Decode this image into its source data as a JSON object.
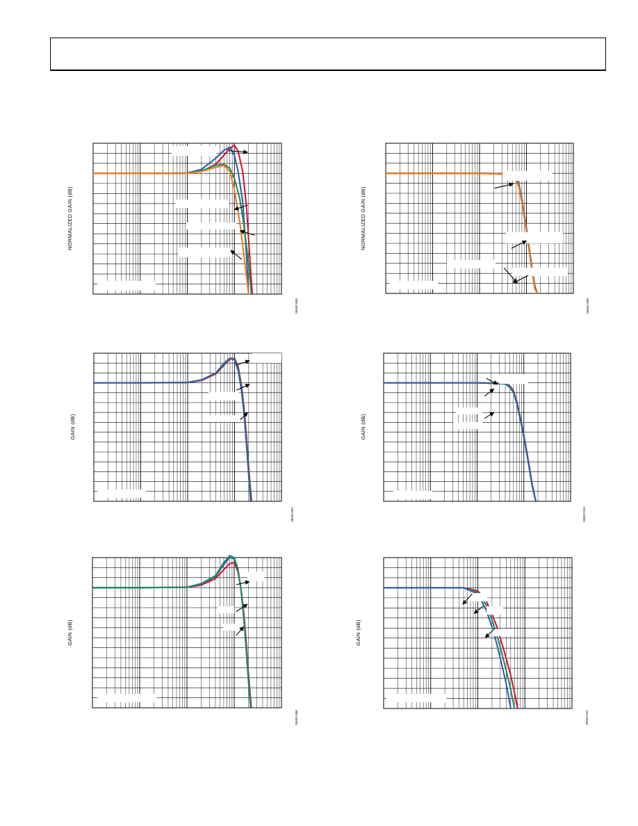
{
  "page": {
    "header_text": ""
  },
  "chart_data": [
    {
      "id": "c1",
      "type": "line",
      "xscale": "log",
      "xlim": [
        0.1,
        1000
      ],
      "ylim": [
        -12,
        3
      ],
      "ylabel": "NORMALIZED GAIN (dB)",
      "figure_code": "09452-006",
      "series": [
        {
          "color": "#d6152f",
          "x": [
            0.1,
            1,
            10,
            20,
            40,
            60,
            80,
            100,
            120,
            150,
            180,
            210,
            240
          ],
          "y": [
            0,
            0,
            0.02,
            0.2,
            0.9,
            1.8,
            2.5,
            2.8,
            2.2,
            0.2,
            -3.2,
            -8.0,
            -12
          ]
        },
        {
          "color": "#2e5fa8",
          "x": [
            0.1,
            1,
            10,
            20,
            40,
            60,
            80,
            100,
            120,
            150,
            180,
            200
          ],
          "y": [
            0,
            0,
            0.04,
            0.4,
            1.5,
            2.3,
            2.6,
            1.8,
            0.2,
            -2.8,
            -8.0,
            -12
          ]
        },
        {
          "color": "#1c8a62",
          "x": [
            0.1,
            1,
            10,
            20,
            40,
            60,
            80,
            100,
            130,
            160,
            200,
            230
          ],
          "y": [
            0,
            0,
            0.02,
            0.25,
            0.8,
            0.9,
            0.5,
            -0.5,
            -2.5,
            -5.2,
            -9.0,
            -12
          ]
        },
        {
          "color": "#ef7a1a",
          "x": [
            0.1,
            1,
            10,
            20,
            40,
            60,
            80,
            100,
            130,
            160,
            200
          ],
          "y": [
            0,
            0,
            0.02,
            0.2,
            0.6,
            0.8,
            0.2,
            -1.6,
            -4.8,
            -8.2,
            -12
          ]
        }
      ],
      "arrows": [
        [
          0.72,
          0.05,
          0.82,
          0.06
        ],
        [
          0.82,
          0.41,
          0.75,
          0.44
        ],
        [
          0.86,
          0.61,
          0.78,
          0.58
        ],
        [
          0.79,
          0.77,
          0.73,
          0.71
        ]
      ]
    },
    {
      "id": "c2",
      "type": "line",
      "xscale": "log",
      "xlim": [
        0.1,
        1000
      ],
      "ylim": [
        -12,
        3
      ],
      "ylabel": "NORMALIZED GAIN (dB)",
      "figure_code": "09452-009",
      "series": [
        {
          "color": "#d6152f",
          "x": [
            0.1,
            10,
            50,
            60,
            70,
            80,
            100,
            120,
            150,
            170
          ],
          "y": [
            0,
            0,
            -0.05,
            -0.3,
            -1.2,
            -2.6,
            -5.5,
            -8.2,
            -11.2,
            -12
          ]
        },
        {
          "color": "#1c8a62",
          "x": [
            0.1,
            10,
            50,
            60,
            70,
            80,
            100,
            120,
            150,
            170
          ],
          "y": [
            0,
            0,
            -0.08,
            -0.4,
            -1.3,
            -2.7,
            -5.6,
            -8.3,
            -11.3,
            -12
          ]
        },
        {
          "color": "#2e5fa8",
          "x": [
            0.1,
            10,
            50,
            60,
            70,
            80,
            100,
            120,
            150,
            170
          ],
          "y": [
            0,
            0,
            -0.1,
            -0.5,
            -1.4,
            -2.8,
            -5.7,
            -8.4,
            -11.4,
            -12
          ]
        },
        {
          "color": "#ef7a1a",
          "x": [
            0.1,
            10,
            50,
            60,
            70,
            80,
            100,
            120,
            150,
            170
          ],
          "y": [
            0,
            0,
            -0.12,
            -0.6,
            -1.5,
            -2.9,
            -5.8,
            -8.5,
            -11.5,
            -12
          ]
        }
      ],
      "arrows": [
        [
          0.58,
          0.3,
          0.68,
          0.27
        ],
        [
          0.67,
          0.7,
          0.75,
          0.65
        ],
        [
          0.63,
          0.83,
          0.7,
          0.93
        ],
        [
          0.76,
          0.88,
          0.68,
          0.93
        ]
      ]
    },
    {
      "id": "c3",
      "type": "line",
      "xscale": "log",
      "xlim": [
        0.1,
        1000
      ],
      "ylim": [
        -12,
        3
      ],
      "ylabel": "GAIN (dB)",
      "figure_code": "09452-007",
      "series": [
        {
          "color": "#d6152f",
          "x": [
            0.1,
            1,
            10,
            20,
            40,
            60,
            80,
            100,
            120,
            140,
            160,
            180,
            200,
            230
          ],
          "y": [
            0,
            0,
            0.03,
            0.25,
            0.9,
            1.8,
            2.4,
            2.5,
            1.6,
            -0.2,
            -2.6,
            -5.5,
            -8.6,
            -12
          ]
        },
        {
          "color": "#1c8a62",
          "x": [
            0.1,
            1,
            10,
            20,
            40,
            60,
            80,
            100,
            120,
            140,
            160,
            180,
            200,
            225
          ],
          "y": [
            0,
            0,
            0.03,
            0.3,
            1.0,
            1.9,
            2.5,
            2.4,
            1.4,
            -0.5,
            -3.0,
            -6.0,
            -9.1,
            -12
          ]
        },
        {
          "color": "#2e5fa8",
          "x": [
            0.1,
            1,
            10,
            20,
            40,
            60,
            80,
            100,
            120,
            140,
            160,
            180,
            200,
            220
          ],
          "y": [
            0,
            0,
            0.03,
            0.3,
            1.0,
            2.0,
            2.5,
            2.3,
            1.2,
            -0.7,
            -3.2,
            -6.3,
            -9.4,
            -12
          ]
        }
      ],
      "arrows": [
        [
          0.76,
          0.08,
          0.83,
          0.05
        ],
        [
          0.76,
          0.25,
          0.83,
          0.21
        ],
        [
          0.78,
          0.45,
          0.82,
          0.4
        ]
      ]
    },
    {
      "id": "c4",
      "type": "line",
      "xscale": "log",
      "xlim": [
        0.1,
        1000
      ],
      "ylim": [
        -12,
        3
      ],
      "ylabel": "GAIN (dB)",
      "figure_code": "09452-010",
      "series": [
        {
          "color": "#d6152f",
          "x": [
            0.1,
            10,
            40,
            50,
            60,
            70,
            85,
            100,
            120,
            150,
            180
          ],
          "y": [
            0,
            0,
            -0.05,
            -0.3,
            -0.8,
            -1.8,
            -3.6,
            -5.3,
            -7.4,
            -10.2,
            -12
          ]
        },
        {
          "color": "#1c8a62",
          "x": [
            0.1,
            10,
            40,
            50,
            60,
            70,
            85,
            100,
            120,
            150,
            180
          ],
          "y": [
            0,
            0,
            -0.07,
            -0.35,
            -0.9,
            -1.9,
            -3.7,
            -5.4,
            -7.5,
            -10.3,
            -12
          ]
        },
        {
          "color": "#2e5fa8",
          "x": [
            0.1,
            10,
            40,
            50,
            60,
            70,
            85,
            100,
            120,
            150,
            180
          ],
          "y": [
            0,
            0,
            -0.1,
            -0.45,
            -1.0,
            -2.0,
            -3.8,
            -5.5,
            -7.6,
            -10.4,
            -12
          ]
        }
      ],
      "arrows": [
        [
          0.55,
          0.17,
          0.61,
          0.21
        ],
        [
          0.54,
          0.29,
          0.59,
          0.24
        ],
        [
          0.54,
          0.44,
          0.59,
          0.4
        ]
      ]
    },
    {
      "id": "c5",
      "type": "line",
      "xscale": "log",
      "xlim": [
        0.1,
        1000
      ],
      "ylim": [
        -12,
        3
      ],
      "ylabel": "GAIN (dB)",
      "figure_code": "09452-008",
      "series": [
        {
          "color": "#d6152f",
          "x": [
            0.1,
            1,
            10,
            20,
            40,
            60,
            80,
            100,
            120,
            140,
            160,
            180,
            200,
            230
          ],
          "y": [
            0,
            0,
            0.03,
            0.25,
            0.9,
            1.8,
            2.4,
            2.5,
            1.6,
            -0.2,
            -2.6,
            -5.5,
            -8.6,
            -12
          ]
        },
        {
          "color": "#2e5fa8",
          "x": [
            0.1,
            1,
            10,
            20,
            40,
            60,
            80,
            100,
            120,
            140,
            160,
            180,
            200,
            225
          ],
          "y": [
            0,
            0,
            0.04,
            0.35,
            1.1,
            2.3,
            3.0,
            2.9,
            1.8,
            -0.3,
            -3.1,
            -6.2,
            -9.3,
            -12
          ]
        },
        {
          "color": "#1c8a62",
          "x": [
            0.1,
            1,
            10,
            20,
            40,
            60,
            80,
            100,
            120,
            140,
            160,
            180,
            200,
            222
          ],
          "y": [
            0,
            0,
            0.04,
            0.4,
            1.2,
            2.5,
            3.2,
            3.0,
            1.9,
            -0.3,
            -3.0,
            -6.1,
            -9.2,
            -12
          ]
        }
      ],
      "arrows": [
        [
          0.76,
          0.18,
          0.83,
          0.16
        ],
        [
          0.76,
          0.36,
          0.82,
          0.31
        ],
        [
          0.76,
          0.52,
          0.8,
          0.46
        ]
      ]
    },
    {
      "id": "c6",
      "type": "line",
      "xscale": "log",
      "xlim": [
        0.1,
        1000
      ],
      "ylim": [
        -12,
        3
      ],
      "ylabel": "GAIN (dB)",
      "figure_code": "09452-011",
      "series": [
        {
          "color": "#d6152f",
          "x": [
            0.1,
            5,
            10,
            15,
            20,
            25,
            30,
            40,
            50,
            60,
            70
          ],
          "y": [
            0,
            0,
            -0.3,
            -1.3,
            -2.6,
            -3.8,
            -5.0,
            -7.0,
            -8.7,
            -10.4,
            -12
          ]
        },
        {
          "color": "#1c8a62",
          "x": [
            0.1,
            5,
            10,
            15,
            20,
            25,
            30,
            40,
            50,
            60
          ],
          "y": [
            0,
            0,
            -0.45,
            -1.7,
            -3.2,
            -4.6,
            -5.9,
            -8.2,
            -10.1,
            -12
          ]
        },
        {
          "color": "#2e5fa8",
          "x": [
            0.1,
            5,
            10,
            15,
            20,
            25,
            30,
            40,
            50
          ],
          "y": [
            0,
            0,
            -0.6,
            -2.2,
            -3.9,
            -5.5,
            -7.0,
            -9.5,
            -12
          ]
        }
      ],
      "arrows": [
        [
          0.47,
          0.24,
          0.42,
          0.31
        ],
        [
          0.53,
          0.32,
          0.48,
          0.37
        ],
        [
          0.59,
          0.47,
          0.54,
          0.53
        ]
      ]
    }
  ]
}
